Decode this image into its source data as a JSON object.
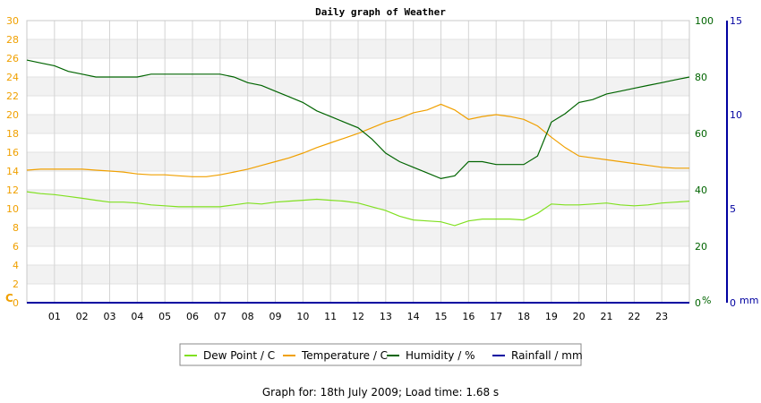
{
  "chart_data": {
    "type": "line",
    "title": "Daily graph of Weather",
    "x_ticks": [
      "01",
      "02",
      "03",
      "04",
      "05",
      "06",
      "07",
      "08",
      "09",
      "10",
      "11",
      "12",
      "13",
      "14",
      "15",
      "16",
      "17",
      "18",
      "19",
      "20",
      "21",
      "22",
      "23"
    ],
    "x_range": [
      0,
      24
    ],
    "axes": {
      "left": {
        "unit": "C",
        "range": [
          0,
          30
        ],
        "ticks": [
          0,
          2,
          4,
          6,
          8,
          10,
          12,
          14,
          16,
          18,
          20,
          22,
          24,
          26,
          28,
          30
        ],
        "color": "#f0a000"
      },
      "right1": {
        "unit": "%",
        "range": [
          0,
          100
        ],
        "ticks": [
          0,
          20,
          40,
          60,
          80,
          100
        ],
        "color": "#006400"
      },
      "right2": {
        "unit": "mm",
        "range": [
          0,
          15
        ],
        "ticks": [
          0,
          5,
          10,
          15
        ],
        "color": "#0000a0"
      }
    },
    "grid": true,
    "legend_position": "bottom",
    "series": [
      {
        "name": "Dew Point / C",
        "axis": "left",
        "color": "#80e020",
        "x": [
          0,
          0.5,
          1,
          1.5,
          2,
          2.5,
          3,
          3.5,
          4,
          4.5,
          5,
          5.5,
          6,
          6.5,
          7,
          7.5,
          8,
          8.5,
          9,
          9.5,
          10,
          10.5,
          11,
          11.5,
          12,
          12.5,
          13,
          13.5,
          14,
          14.5,
          15,
          15.5,
          16,
          16.5,
          17,
          17.5,
          18,
          18.5,
          19,
          19.5,
          20,
          20.5,
          21,
          21.5,
          22,
          22.5,
          23,
          23.5,
          24
        ],
        "y": [
          11.8,
          11.6,
          11.5,
          11.3,
          11.1,
          10.9,
          10.7,
          10.7,
          10.6,
          10.4,
          10.3,
          10.2,
          10.2,
          10.2,
          10.2,
          10.4,
          10.6,
          10.5,
          10.7,
          10.8,
          10.9,
          11.0,
          10.9,
          10.8,
          10.6,
          10.2,
          9.8,
          9.2,
          8.8,
          8.7,
          8.6,
          8.2,
          8.7,
          8.9,
          8.9,
          8.9,
          8.8,
          9.5,
          10.5,
          10.4,
          10.4,
          10.5,
          10.6,
          10.4,
          10.3,
          10.4,
          10.6,
          10.7,
          10.8
        ]
      },
      {
        "name": "Temperature / C",
        "axis": "left",
        "color": "#f0a000",
        "x": [
          0,
          0.5,
          1,
          1.5,
          2,
          2.5,
          3,
          3.5,
          4,
          4.5,
          5,
          5.5,
          6,
          6.5,
          7,
          7.5,
          8,
          8.5,
          9,
          9.5,
          10,
          10.5,
          11,
          11.5,
          12,
          12.5,
          13,
          13.5,
          14,
          14.5,
          15,
          15.5,
          16,
          16.5,
          17,
          17.5,
          18,
          18.5,
          19,
          19.5,
          20,
          20.5,
          21,
          21.5,
          22,
          22.5,
          23,
          23.5,
          24
        ],
        "y": [
          14.1,
          14.2,
          14.2,
          14.2,
          14.2,
          14.1,
          14.0,
          13.9,
          13.7,
          13.6,
          13.6,
          13.5,
          13.4,
          13.4,
          13.6,
          13.9,
          14.2,
          14.6,
          15.0,
          15.4,
          15.9,
          16.5,
          17.0,
          17.5,
          18.0,
          18.6,
          19.2,
          19.6,
          20.2,
          20.5,
          21.1,
          20.5,
          19.5,
          19.8,
          20.0,
          19.8,
          19.5,
          18.8,
          17.6,
          16.5,
          15.6,
          15.4,
          15.2,
          15.0,
          14.8,
          14.6,
          14.4,
          14.3,
          14.3
        ]
      },
      {
        "name": "Humidity / %",
        "axis": "right1",
        "color": "#006400",
        "x": [
          0,
          0.5,
          1,
          1.5,
          2,
          2.5,
          3,
          3.5,
          4,
          4.5,
          5,
          5.5,
          6,
          6.5,
          7,
          7.5,
          8,
          8.5,
          9,
          9.5,
          10,
          10.5,
          11,
          11.5,
          12,
          12.5,
          13,
          13.5,
          14,
          14.5,
          15,
          15.5,
          16,
          16.5,
          17,
          17.5,
          18,
          18.5,
          19,
          19.5,
          20,
          20.5,
          21,
          21.5,
          22,
          22.5,
          23,
          23.5,
          24
        ],
        "y": [
          86,
          85,
          84,
          82,
          81,
          80,
          80,
          80,
          80,
          81,
          81,
          81,
          81,
          81,
          81,
          80,
          78,
          77,
          75,
          73,
          71,
          68,
          66,
          64,
          62,
          58,
          53,
          50,
          48,
          46,
          44,
          45,
          50,
          50,
          49,
          49,
          49,
          52,
          64,
          67,
          71,
          72,
          74,
          75,
          76,
          77,
          78,
          79,
          80
        ]
      },
      {
        "name": "Rainfall / mm",
        "axis": "right2",
        "color": "#0000a0",
        "x": [
          0,
          24
        ],
        "y": [
          0,
          0
        ]
      }
    ]
  },
  "footer": {
    "text": "Graph for: 18th July 2009; Load time: 1.68 s"
  }
}
